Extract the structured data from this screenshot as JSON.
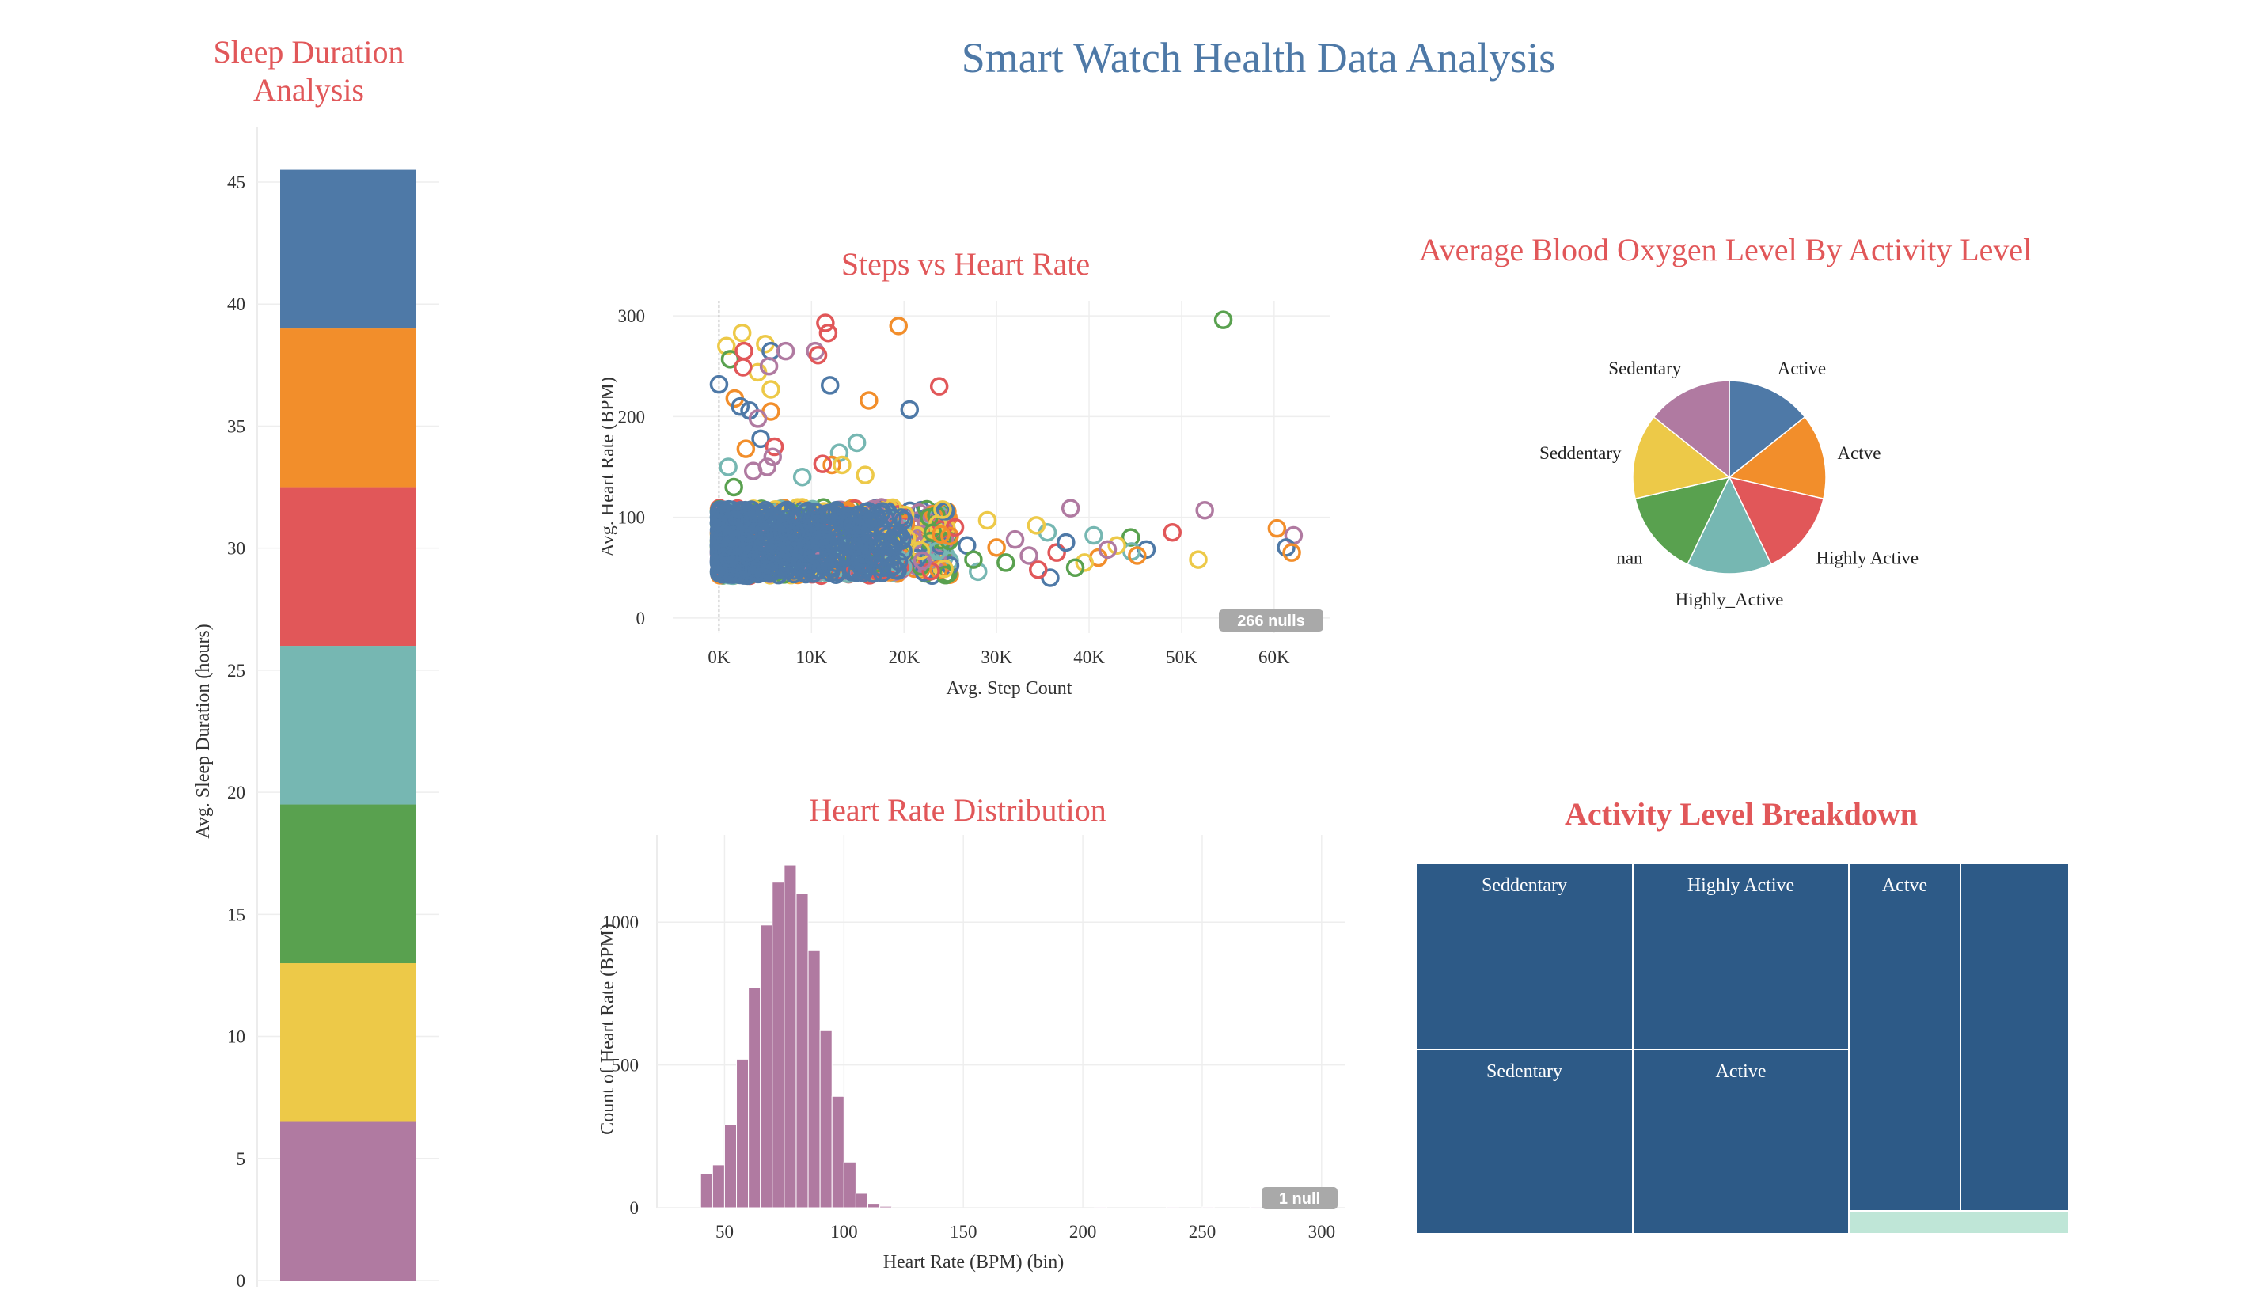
{
  "dashboard": {
    "title": "Smart Watch Health Data Analysis"
  },
  "colors": {
    "blue": "#4e79a7",
    "orange": "#f28e2b",
    "red": "#e15759",
    "teal": "#76b7b2",
    "green": "#59a14f",
    "yellow": "#edc948",
    "purple": "#b07aa1",
    "navy": "#2d5a87",
    "mint": "#bfe6d7",
    "grid": "#eeeeee",
    "title_red": "#e15759"
  },
  "chart_data": [
    {
      "id": "sleep",
      "type": "bar",
      "stacked": true,
      "title": "Sleep Duration Analysis",
      "title_lines": [
        "Sleep Duration",
        "Analysis"
      ],
      "xlabel": "",
      "ylabel": "Avg. Sleep Duration (hours)",
      "ylim": [
        0,
        45
      ],
      "yticks": [
        0,
        5,
        10,
        15,
        20,
        25,
        30,
        35,
        40,
        45
      ],
      "grid": true,
      "segments": [
        {
          "value": 6.5,
          "color": "#b07aa1"
        },
        {
          "value": 6.5,
          "color": "#edc948"
        },
        {
          "value": 6.5,
          "color": "#59a14f"
        },
        {
          "value": 6.5,
          "color": "#76b7b2"
        },
        {
          "value": 6.5,
          "color": "#e15759"
        },
        {
          "value": 6.5,
          "color": "#f28e2b"
        },
        {
          "value": 6.5,
          "color": "#4e79a7"
        }
      ]
    },
    {
      "id": "scatter",
      "type": "scatter",
      "title": "Steps vs Heart Rate",
      "xlabel": "Avg. Step Count",
      "ylabel": "Avg. Heart Rate (BPM)",
      "xlim": [
        -5000,
        66000
      ],
      "ylim": [
        -15,
        315
      ],
      "xticks": [
        0,
        10000,
        20000,
        30000,
        40000,
        50000,
        60000
      ],
      "xtick_labels": [
        "0K",
        "10K",
        "20K",
        "30K",
        "40K",
        "50K",
        "60K"
      ],
      "yticks": [
        0,
        100,
        200,
        300
      ],
      "grid": true,
      "null_badge": "266 nulls",
      "outliers": [
        {
          "x": 11500,
          "y": 293,
          "c": "red"
        },
        {
          "x": 11800,
          "y": 283,
          "c": "red"
        },
        {
          "x": 19400,
          "y": 290,
          "c": "orange"
        },
        {
          "x": 2500,
          "y": 283,
          "c": "yellow"
        },
        {
          "x": 800,
          "y": 270,
          "c": "yellow"
        },
        {
          "x": 5000,
          "y": 272,
          "c": "yellow"
        },
        {
          "x": 4200,
          "y": 244,
          "c": "yellow"
        },
        {
          "x": 1200,
          "y": 257,
          "c": "green"
        },
        {
          "x": 54500,
          "y": 296,
          "c": "green"
        },
        {
          "x": 2700,
          "y": 265,
          "c": "red"
        },
        {
          "x": 5600,
          "y": 265,
          "c": "blue"
        },
        {
          "x": 7200,
          "y": 265,
          "c": "purple"
        },
        {
          "x": 10400,
          "y": 265,
          "c": "purple"
        },
        {
          "x": 10700,
          "y": 261,
          "c": "red"
        },
        {
          "x": 2600,
          "y": 249,
          "c": "red"
        },
        {
          "x": 5400,
          "y": 250,
          "c": "purple"
        },
        {
          "x": 0,
          "y": 232,
          "c": "blue"
        },
        {
          "x": 5600,
          "y": 227,
          "c": "yellow"
        },
        {
          "x": 12000,
          "y": 231,
          "c": "blue"
        },
        {
          "x": 23800,
          "y": 230,
          "c": "red"
        },
        {
          "x": 1700,
          "y": 218,
          "c": "orange"
        },
        {
          "x": 2300,
          "y": 210,
          "c": "blue"
        },
        {
          "x": 3300,
          "y": 206,
          "c": "blue"
        },
        {
          "x": 5600,
          "y": 205,
          "c": "orange"
        },
        {
          "x": 20600,
          "y": 207,
          "c": "blue"
        },
        {
          "x": 16200,
          "y": 216,
          "c": "orange"
        },
        {
          "x": 4200,
          "y": 198,
          "c": "purple"
        },
        {
          "x": 4500,
          "y": 178,
          "c": "blue"
        },
        {
          "x": 6000,
          "y": 170,
          "c": "red"
        },
        {
          "x": 2900,
          "y": 168,
          "c": "orange"
        },
        {
          "x": 14900,
          "y": 174,
          "c": "teal"
        },
        {
          "x": 13000,
          "y": 164,
          "c": "teal"
        },
        {
          "x": 5800,
          "y": 160,
          "c": "purple"
        },
        {
          "x": 5200,
          "y": 150,
          "c": "purple"
        },
        {
          "x": 3700,
          "y": 146,
          "c": "purple"
        },
        {
          "x": 1000,
          "y": 150,
          "c": "teal"
        },
        {
          "x": 12200,
          "y": 152,
          "c": "orange"
        },
        {
          "x": 13300,
          "y": 152,
          "c": "yellow"
        },
        {
          "x": 11200,
          "y": 153,
          "c": "red"
        },
        {
          "x": 15800,
          "y": 142,
          "c": "yellow"
        },
        {
          "x": 1600,
          "y": 130,
          "c": "green"
        },
        {
          "x": 9000,
          "y": 140,
          "c": "teal"
        },
        {
          "x": 38000,
          "y": 109,
          "c": "purple"
        },
        {
          "x": 52500,
          "y": 107,
          "c": "purple"
        },
        {
          "x": 60300,
          "y": 89,
          "c": "orange"
        },
        {
          "x": 62100,
          "y": 82,
          "c": "purple"
        },
        {
          "x": 61300,
          "y": 70,
          "c": "blue"
        },
        {
          "x": 61900,
          "y": 65,
          "c": "orange"
        },
        {
          "x": 44500,
          "y": 80,
          "c": "green"
        },
        {
          "x": 49000,
          "y": 85,
          "c": "red"
        },
        {
          "x": 46200,
          "y": 68,
          "c": "blue"
        },
        {
          "x": 44600,
          "y": 66,
          "c": "teal"
        },
        {
          "x": 45200,
          "y": 62,
          "c": "orange"
        },
        {
          "x": 43000,
          "y": 72,
          "c": "yellow"
        },
        {
          "x": 41000,
          "y": 60,
          "c": "orange"
        },
        {
          "x": 39500,
          "y": 55,
          "c": "yellow"
        },
        {
          "x": 38500,
          "y": 50,
          "c": "green"
        },
        {
          "x": 51800,
          "y": 58,
          "c": "yellow"
        },
        {
          "x": 35500,
          "y": 85,
          "c": "teal"
        },
        {
          "x": 36500,
          "y": 65,
          "c": "red"
        },
        {
          "x": 34300,
          "y": 92,
          "c": "yellow"
        },
        {
          "x": 33500,
          "y": 62,
          "c": "purple"
        },
        {
          "x": 30000,
          "y": 70,
          "c": "orange"
        },
        {
          "x": 31000,
          "y": 55,
          "c": "green"
        },
        {
          "x": 35800,
          "y": 40,
          "c": "blue"
        },
        {
          "x": 28000,
          "y": 46,
          "c": "teal"
        },
        {
          "x": 25500,
          "y": 90,
          "c": "red"
        },
        {
          "x": 26800,
          "y": 72,
          "c": "blue"
        },
        {
          "x": 29000,
          "y": 97,
          "c": "yellow"
        },
        {
          "x": 32000,
          "y": 78,
          "c": "purple"
        },
        {
          "x": 27500,
          "y": 58,
          "c": "green"
        },
        {
          "x": 24000,
          "y": 83,
          "c": "orange"
        },
        {
          "x": 34500,
          "y": 48,
          "c": "red"
        },
        {
          "x": 37500,
          "y": 75,
          "c": "blue"
        },
        {
          "x": 42000,
          "y": 68,
          "c": "purple"
        },
        {
          "x": 40500,
          "y": 82,
          "c": "teal"
        }
      ],
      "cluster": {
        "x_range": [
          0,
          25000
        ],
        "y_range": [
          40,
          110
        ],
        "description_free": true
      },
      "series_colors": [
        "blue",
        "orange",
        "red",
        "teal",
        "green",
        "yellow",
        "purple"
      ]
    },
    {
      "id": "pie",
      "type": "pie",
      "title": "Average Blood Oxygen Level By Activity Level",
      "slices": [
        {
          "label": "Active",
          "value": 1,
          "color": "#4e79a7"
        },
        {
          "label": "Actve",
          "value": 1,
          "color": "#f28e2b"
        },
        {
          "label": "Highly Active",
          "value": 1,
          "color": "#e15759"
        },
        {
          "label": "Highly_Active",
          "value": 1,
          "color": "#76b7b2"
        },
        {
          "label": "nan",
          "value": 1,
          "color": "#59a14f"
        },
        {
          "label": "Seddentary",
          "value": 1,
          "color": "#edc948"
        },
        {
          "label": "Sedentary",
          "value": 1,
          "color": "#b07aa1"
        }
      ]
    },
    {
      "id": "hist",
      "type": "bar",
      "title": "Heart Rate Distribution",
      "xlabel": "Heart Rate (BPM) (bin)",
      "ylabel": "Count of Heart Rate (BPM)",
      "xlim": [
        25,
        310
      ],
      "ylim": [
        0,
        1250
      ],
      "xticks": [
        50,
        100,
        150,
        200,
        250,
        300
      ],
      "yticks": [
        0,
        500,
        1000
      ],
      "bin_width": 5,
      "grid": true,
      "null_badge": "1 null",
      "bins": [
        {
          "x": 40,
          "v": 120
        },
        {
          "x": 45,
          "v": 150
        },
        {
          "x": 50,
          "v": 290
        },
        {
          "x": 55,
          "v": 520
        },
        {
          "x": 60,
          "v": 770
        },
        {
          "x": 65,
          "v": 990
        },
        {
          "x": 70,
          "v": 1140
        },
        {
          "x": 75,
          "v": 1200
        },
        {
          "x": 80,
          "v": 1100
        },
        {
          "x": 85,
          "v": 900
        },
        {
          "x": 90,
          "v": 620
        },
        {
          "x": 95,
          "v": 390
        },
        {
          "x": 100,
          "v": 160
        },
        {
          "x": 105,
          "v": 50
        },
        {
          "x": 110,
          "v": 15
        },
        {
          "x": 115,
          "v": 5
        },
        {
          "x": 205,
          "v": 3
        },
        {
          "x": 235,
          "v": 3
        },
        {
          "x": 250,
          "v": 3
        },
        {
          "x": 270,
          "v": 3
        },
        {
          "x": 280,
          "v": 3
        },
        {
          "x": 290,
          "v": 3
        },
        {
          "x": 295,
          "v": 3
        }
      ]
    },
    {
      "id": "treemap",
      "type": "treemap",
      "title": "Activity Level Breakdown",
      "cells": [
        {
          "label": "Seddentary",
          "color": "#2d5a87"
        },
        {
          "label": "Sedentary",
          "color": "#2d5a87"
        },
        {
          "label": "Highly Active",
          "color": "#2d5a87"
        },
        {
          "label": "Active",
          "color": "#2d5a87"
        },
        {
          "label": "Actve",
          "color": "#2d5a87"
        },
        {
          "label": "",
          "color": "#2d5a87"
        },
        {
          "label": "",
          "color": "#bfe6d7"
        }
      ]
    }
  ]
}
